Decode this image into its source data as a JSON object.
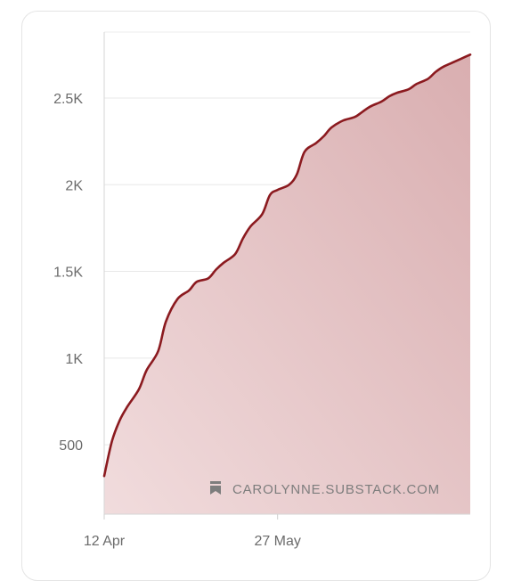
{
  "chart_data": {
    "type": "area",
    "title": "",
    "xlabel": "",
    "ylabel": "",
    "x_tick_labels": [
      "12 Apr",
      "27 May"
    ],
    "x_tick_dates": [
      "2024-04-12",
      "2024-05-27"
    ],
    "x_range": [
      "2024-04-12",
      "2024-07-16"
    ],
    "y_tick_labels": [
      "500",
      "1K",
      "1.5K",
      "2K",
      "2.5K"
    ],
    "y_ticks": [
      500,
      1000,
      1500,
      2000,
      2500
    ],
    "ylim": [
      100,
      2880
    ],
    "grid": "horizontal",
    "legend": "none",
    "line_color": "#8b1a1f",
    "fill_color": "#c98a8e",
    "watermark": "CAROLYNNE.SUBSTACK.COM",
    "series": [
      {
        "x": [
          "2024-04-12",
          "2024-04-14",
          "2024-04-16",
          "2024-04-18",
          "2024-04-21",
          "2024-04-23",
          "2024-04-26",
          "2024-04-28",
          "2024-05-01",
          "2024-05-04",
          "2024-05-06",
          "2024-05-09",
          "2024-05-11",
          "2024-05-13",
          "2024-05-16",
          "2024-05-18",
          "2024-05-20",
          "2024-05-23",
          "2024-05-25",
          "2024-05-27",
          "2024-05-30",
          "2024-06-01",
          "2024-06-03",
          "2024-06-06",
          "2024-06-08",
          "2024-06-10",
          "2024-06-13",
          "2024-06-16",
          "2024-06-18",
          "2024-06-20",
          "2024-06-23",
          "2024-06-25",
          "2024-06-27",
          "2024-06-30",
          "2024-07-02",
          "2024-07-05",
          "2024-07-07",
          "2024-07-09",
          "2024-07-12",
          "2024-07-14",
          "2024-07-16"
        ],
        "values": [
          320,
          520,
          640,
          720,
          820,
          930,
          1040,
          1210,
          1340,
          1390,
          1440,
          1460,
          1510,
          1550,
          1600,
          1690,
          1760,
          1830,
          1940,
          1970,
          2000,
          2060,
          2190,
          2240,
          2280,
          2330,
          2370,
          2390,
          2420,
          2450,
          2480,
          2510,
          2530,
          2550,
          2580,
          2610,
          2650,
          2680,
          2710,
          2730,
          2750
        ]
      }
    ]
  }
}
